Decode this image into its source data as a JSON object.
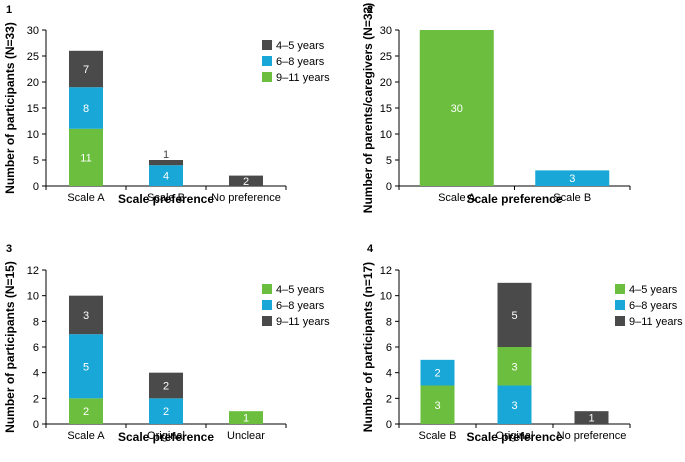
{
  "colors": {
    "green": "#6CBF3E",
    "blue": "#18A7D6",
    "dark": "#4A4A4A"
  },
  "chart_data": [
    {
      "type": "bar",
      "panel": "1",
      "stacked": true,
      "categories": [
        "Scale A",
        "Scale B",
        "No preference"
      ],
      "series": [
        {
          "name": "9–11 years",
          "color": "green",
          "values": [
            11,
            0,
            0
          ],
          "labels": [
            "11",
            "",
            ""
          ]
        },
        {
          "name": "6–8 years",
          "color": "blue",
          "values": [
            8,
            4,
            0
          ],
          "labels": [
            "8",
            "4",
            ""
          ]
        },
        {
          "name": "4–5 years",
          "color": "dark",
          "values": [
            7,
            1,
            2
          ],
          "labels": [
            "7",
            "1",
            "2"
          ]
        }
      ],
      "legend": [
        {
          "name": "4–5 years",
          "color": "dark"
        },
        {
          "name": "6–8 years",
          "color": "blue"
        },
        {
          "name": "9–11 years",
          "color": "green"
        }
      ],
      "xlabel": "Scale preference",
      "ylabel": "Number of participants (N=33)",
      "ylim": [
        0,
        30
      ],
      "yticks": [
        0,
        5,
        10,
        15,
        20,
        25,
        30
      ],
      "legend_position": "top-right"
    },
    {
      "type": "bar",
      "panel": "2",
      "stacked": true,
      "categories": [
        "Scale A",
        "Scale B"
      ],
      "series": [
        {
          "name": "Scale A",
          "color": "green",
          "values": [
            30,
            0
          ],
          "labels": [
            "30",
            ""
          ]
        },
        {
          "name": "Scale B",
          "color": "blue",
          "values": [
            0,
            3
          ],
          "labels": [
            "",
            "3"
          ]
        }
      ],
      "legend": [],
      "xlabel": "Scale preference",
      "ylabel": "Number of parents/caregivers (N=33)",
      "ylim": [
        0,
        30
      ],
      "yticks": [
        0,
        5,
        10,
        15,
        20,
        25,
        30
      ],
      "legend_position": "none"
    },
    {
      "type": "bar",
      "panel": "3",
      "stacked": true,
      "categories": [
        "Scale A",
        "Original",
        "Unclear"
      ],
      "series": [
        {
          "name": "4–5 years",
          "color": "green",
          "values": [
            2,
            0,
            1
          ],
          "labels": [
            "2",
            "",
            "1"
          ]
        },
        {
          "name": "6–8 years",
          "color": "blue",
          "values": [
            5,
            2,
            0
          ],
          "labels": [
            "5",
            "2",
            ""
          ]
        },
        {
          "name": "9–11 years",
          "color": "dark",
          "values": [
            3,
            2,
            0
          ],
          "labels": [
            "3",
            "2",
            ""
          ]
        }
      ],
      "legend": [
        {
          "name": "4–5 years",
          "color": "green"
        },
        {
          "name": "6–8 years",
          "color": "blue"
        },
        {
          "name": "9–11 years",
          "color": "dark"
        }
      ],
      "xlabel": "Scale preference",
      "ylabel": "Number of participants (N=15)",
      "ylim": [
        0,
        12
      ],
      "yticks": [
        0,
        2,
        4,
        6,
        8,
        10,
        12
      ],
      "legend_position": "right"
    },
    {
      "type": "bar",
      "panel": "4",
      "stacked": true,
      "categories": [
        "Scale B",
        "Original",
        "No preference"
      ],
      "series": [
        {
          "name": "6–8 years",
          "color": "blue",
          "values": [
            0,
            3,
            0
          ],
          "labels": [
            "",
            "3",
            ""
          ]
        },
        {
          "name": "4–5 years",
          "color": "green",
          "values": [
            3,
            3,
            0
          ],
          "labels": [
            "3",
            "3",
            ""
          ]
        },
        {
          "name": "6–8 years",
          "color": "blue",
          "values": [
            2,
            0,
            0
          ],
          "labels": [
            "2",
            "",
            ""
          ]
        },
        {
          "name": "9–11 years",
          "color": "dark",
          "values": [
            0,
            5,
            1
          ],
          "labels": [
            "",
            "5",
            "1"
          ]
        }
      ],
      "legend": [
        {
          "name": "4–5 years",
          "color": "green"
        },
        {
          "name": "6–8 years",
          "color": "blue"
        },
        {
          "name": "9–11 years",
          "color": "dark"
        }
      ],
      "xlabel": "Scale preference",
      "ylabel": "Number of participants (n=17)",
      "ylim": [
        0,
        12
      ],
      "yticks": [
        0,
        2,
        4,
        6,
        8,
        10,
        12
      ],
      "legend_position": "right"
    }
  ]
}
